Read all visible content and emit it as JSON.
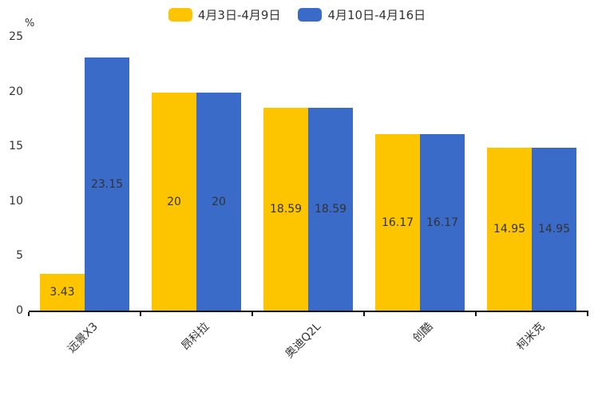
{
  "chart_data": {
    "type": "bar",
    "title": "",
    "categories": [
      "远景X3",
      "昂科拉",
      "奥迪Q2L",
      "创酷",
      "柯米克"
    ],
    "series": [
      {
        "name": "4月3日-4月9日",
        "color": "#FDC500",
        "values": [
          3.43,
          20,
          18.59,
          16.17,
          14.95
        ]
      },
      {
        "name": "4月10日-4月16日",
        "color": "#3A6BC8",
        "values": [
          23.15,
          20,
          18.59,
          16.17,
          14.95
        ]
      }
    ],
    "xlabel": "",
    "ylabel": "%",
    "ylim": [
      0,
      25
    ],
    "yticks": [
      0,
      5,
      10,
      15,
      20,
      25
    ],
    "grid": false,
    "legend_position": "top-center",
    "value_labels": true,
    "x_label_rotation_deg": 45,
    "axis_color": "#111111",
    "label_color": "#333333"
  }
}
